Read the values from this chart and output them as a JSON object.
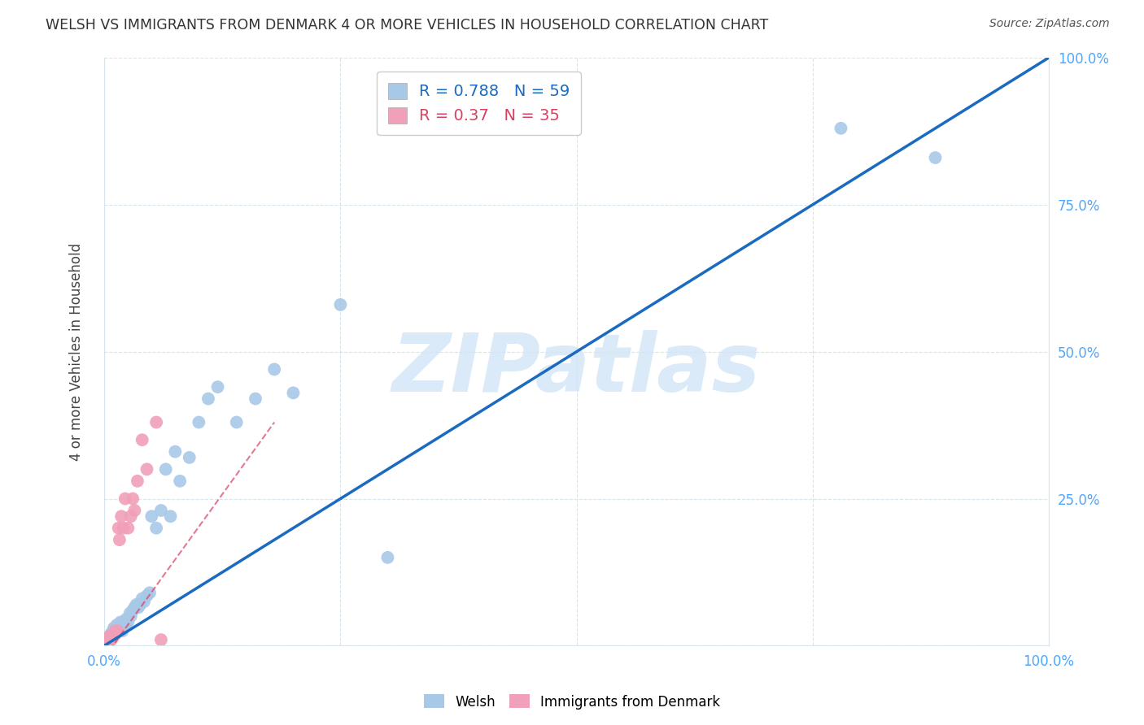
{
  "title": "WELSH VS IMMIGRANTS FROM DENMARK 4 OR MORE VEHICLES IN HOUSEHOLD CORRELATION CHART",
  "source": "Source: ZipAtlas.com",
  "ylabel": "4 or more Vehicles in Household",
  "xlabel": "",
  "watermark": "ZIPatlas",
  "xlim": [
    0.0,
    1.0
  ],
  "ylim": [
    0.0,
    1.0
  ],
  "xticks": [
    0.0,
    0.25,
    0.5,
    0.75,
    1.0
  ],
  "yticks": [
    0.0,
    0.25,
    0.5,
    0.75,
    1.0
  ],
  "xtick_labels": [
    "0.0%",
    "",
    "",
    "",
    "100.0%"
  ],
  "ytick_labels": [
    "",
    "25.0%",
    "50.0%",
    "75.0%",
    "100.0%"
  ],
  "blue_R": 0.788,
  "blue_N": 59,
  "pink_R": 0.37,
  "pink_N": 35,
  "blue_color": "#a8c8e8",
  "pink_color": "#f0a0b8",
  "blue_line_color": "#1a6bbf",
  "pink_line_color": "#d94060",
  "grid_color": "#d8e4ec",
  "background_color": "#ffffff",
  "watermark_color": "#daeaf8",
  "blue_scatter_x": [
    0.002,
    0.003,
    0.004,
    0.005,
    0.005,
    0.006,
    0.006,
    0.007,
    0.007,
    0.008,
    0.008,
    0.009,
    0.009,
    0.01,
    0.01,
    0.011,
    0.012,
    0.013,
    0.013,
    0.014,
    0.015,
    0.016,
    0.017,
    0.018,
    0.019,
    0.02,
    0.022,
    0.023,
    0.025,
    0.027,
    0.028,
    0.03,
    0.032,
    0.034,
    0.036,
    0.038,
    0.04,
    0.042,
    0.045,
    0.048,
    0.05,
    0.055,
    0.06,
    0.065,
    0.07,
    0.075,
    0.08,
    0.09,
    0.1,
    0.11,
    0.12,
    0.14,
    0.16,
    0.18,
    0.2,
    0.25,
    0.3,
    0.78,
    0.88
  ],
  "blue_scatter_y": [
    0.008,
    0.01,
    0.012,
    0.015,
    0.01,
    0.012,
    0.018,
    0.015,
    0.02,
    0.015,
    0.022,
    0.018,
    0.025,
    0.02,
    0.03,
    0.025,
    0.022,
    0.03,
    0.035,
    0.025,
    0.035,
    0.03,
    0.04,
    0.035,
    0.025,
    0.04,
    0.035,
    0.045,
    0.04,
    0.055,
    0.05,
    0.06,
    0.065,
    0.07,
    0.065,
    0.07,
    0.08,
    0.075,
    0.085,
    0.09,
    0.22,
    0.2,
    0.23,
    0.3,
    0.22,
    0.33,
    0.28,
    0.32,
    0.38,
    0.42,
    0.44,
    0.38,
    0.42,
    0.47,
    0.43,
    0.58,
    0.15,
    0.88,
    0.83
  ],
  "pink_scatter_x": [
    0.001,
    0.002,
    0.003,
    0.003,
    0.004,
    0.004,
    0.005,
    0.005,
    0.006,
    0.006,
    0.007,
    0.007,
    0.008,
    0.008,
    0.009,
    0.01,
    0.01,
    0.011,
    0.012,
    0.013,
    0.014,
    0.015,
    0.016,
    0.018,
    0.02,
    0.022,
    0.025,
    0.028,
    0.03,
    0.032,
    0.035,
    0.04,
    0.045,
    0.055,
    0.06
  ],
  "pink_scatter_y": [
    0.003,
    0.005,
    0.006,
    0.01,
    0.008,
    0.012,
    0.01,
    0.015,
    0.008,
    0.012,
    0.01,
    0.015,
    0.012,
    0.018,
    0.015,
    0.02,
    0.018,
    0.025,
    0.02,
    0.022,
    0.025,
    0.2,
    0.18,
    0.22,
    0.2,
    0.25,
    0.2,
    0.22,
    0.25,
    0.23,
    0.28,
    0.35,
    0.3,
    0.38,
    0.01
  ],
  "blue_line_x": [
    0.0,
    1.0
  ],
  "blue_line_y": [
    0.0,
    1.0
  ],
  "pink_line_x": [
    0.0,
    0.18
  ],
  "pink_line_y": [
    -0.02,
    0.38
  ]
}
